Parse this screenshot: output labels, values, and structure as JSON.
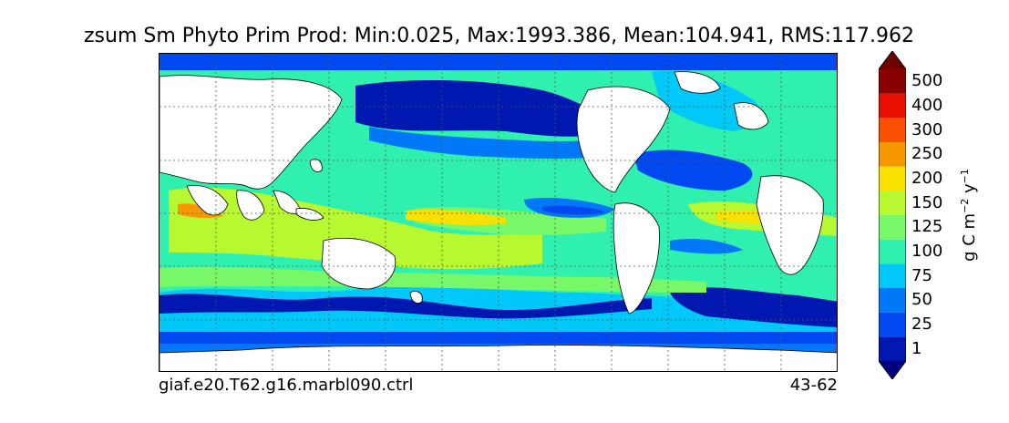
{
  "title": "zsum Sm Phyto Prim Prod: Min:0.025, Max:1993.386, Mean:104.941, RMS:117.962",
  "footer": {
    "case_name": "giaf.e20.T62.g16.marbl090.ctrl",
    "years": "43-62"
  },
  "colorbar": {
    "units_main": "g C m",
    "units_exp1": "−2",
    "units_mid": " y",
    "units_exp2": "−1",
    "levels": [
      {
        "label": "1",
        "color": "#0018b0"
      },
      {
        "label": "25",
        "color": "#0048f0"
      },
      {
        "label": "50",
        "color": "#0078f8"
      },
      {
        "label": "75",
        "color": "#00c8f8"
      },
      {
        "label": "100",
        "color": "#30f0b0"
      },
      {
        "label": "125",
        "color": "#78f868"
      },
      {
        "label": "150",
        "color": "#b8f830"
      },
      {
        "label": "200",
        "color": "#f8e000"
      },
      {
        "label": "250",
        "color": "#f89800"
      },
      {
        "label": "300",
        "color": "#f85000"
      },
      {
        "label": "400",
        "color": "#e81000"
      },
      {
        "label": "500",
        "color": "#880000"
      }
    ],
    "under_color": "#000080",
    "over_color": "#700000"
  },
  "map": {
    "land_color": "#ffffff",
    "gridlines": "dotted"
  }
}
